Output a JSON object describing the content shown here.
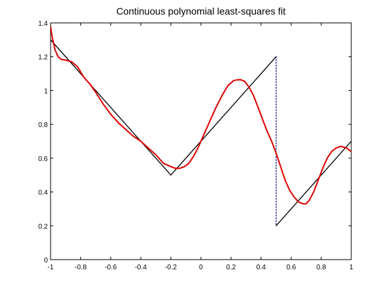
{
  "chart_data": {
    "type": "line",
    "title": "Continuous polynomial least-squares fit",
    "xlabel": "",
    "ylabel": "",
    "xlim": [
      -1,
      1
    ],
    "ylim": [
      0,
      1.4
    ],
    "grid": false,
    "legend": "none",
    "x_ticks": [
      -1,
      -0.8,
      -0.6,
      -0.4,
      -0.2,
      0,
      0.2,
      0.4,
      0.6,
      0.8,
      1
    ],
    "x_tick_labels": [
      "-1",
      "-0.8",
      "-0.6",
      "-0.4",
      "-0.2",
      "0",
      "0.2",
      "0.4",
      "0.6",
      "0.8",
      "1"
    ],
    "y_ticks": [
      0,
      0.2,
      0.4,
      0.6,
      0.8,
      1,
      1.2,
      1.4
    ],
    "y_tick_labels": [
      "0",
      "0.2",
      "0.4",
      "0.6",
      "0.8",
      "1",
      "1.2",
      "1.4"
    ],
    "series": [
      {
        "color": "#000000",
        "style": "solid",
        "x": [
          -1,
          -0.2,
          0.5
        ],
        "y": [
          1.3,
          0.5,
          1.2
        ]
      },
      {
        "color": "#000000",
        "style": "solid",
        "x": [
          0.5,
          1
        ],
        "y": [
          0.2,
          0.7
        ]
      },
      {
        "color": "#000080",
        "style": "dotted",
        "x": [
          0.5,
          0.5
        ],
        "y": [
          1.2,
          0.2
        ]
      },
      {
        "color": "#e00000",
        "style": "solid",
        "x": [
          -1,
          -0.99,
          -0.97,
          -0.95,
          -0.93,
          -0.9,
          -0.86,
          -0.82,
          -0.78,
          -0.74,
          -0.7,
          -0.65,
          -0.6,
          -0.55,
          -0.5,
          -0.45,
          -0.4,
          -0.35,
          -0.3,
          -0.25,
          -0.2,
          -0.17,
          -0.14,
          -0.11,
          -0.08,
          -0.05,
          -0.02,
          0.02,
          0.06,
          0.1,
          0.14,
          0.18,
          0.22,
          0.26,
          0.29,
          0.32,
          0.35,
          0.38,
          0.41,
          0.44,
          0.47,
          0.5,
          0.53,
          0.56,
          0.59,
          0.62,
          0.65,
          0.68,
          0.7,
          0.72,
          0.75,
          0.78,
          0.81,
          0.84,
          0.87,
          0.9,
          0.93,
          0.95,
          0.97,
          0.99,
          1
        ],
        "y": [
          1.38,
          1.32,
          1.24,
          1.2,
          1.185,
          1.18,
          1.17,
          1.14,
          1.08,
          1.04,
          0.99,
          0.92,
          0.86,
          0.81,
          0.77,
          0.73,
          0.7,
          0.66,
          0.62,
          0.57,
          0.55,
          0.54,
          0.54,
          0.55,
          0.57,
          0.61,
          0.66,
          0.74,
          0.82,
          0.9,
          0.97,
          1.03,
          1.06,
          1.065,
          1.055,
          1.02,
          0.97,
          0.9,
          0.83,
          0.76,
          0.7,
          0.63,
          0.55,
          0.47,
          0.41,
          0.37,
          0.34,
          0.33,
          0.33,
          0.35,
          0.4,
          0.47,
          0.54,
          0.6,
          0.64,
          0.66,
          0.67,
          0.665,
          0.66,
          0.645,
          0.64
        ]
      }
    ]
  }
}
